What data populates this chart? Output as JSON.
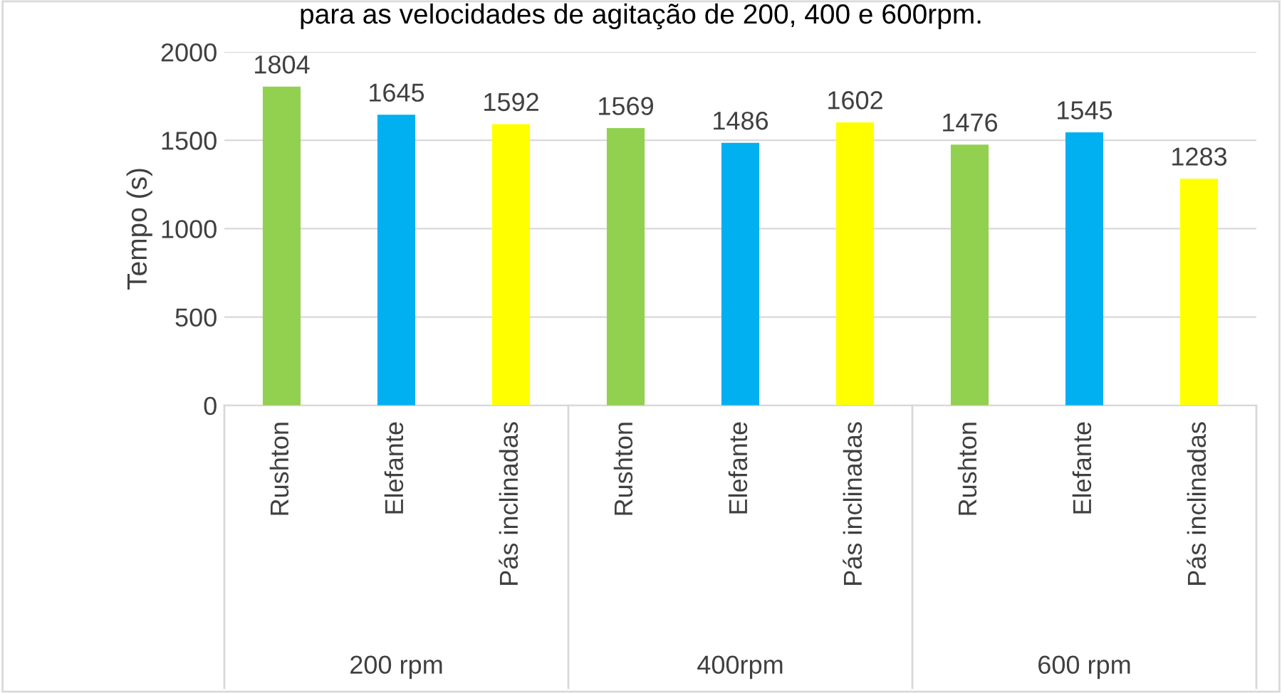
{
  "chart_data": {
    "type": "bar",
    "title": "para as velocidades de agitação de 200, 400 e 600rpm.",
    "ylabel": "Tempo (s)",
    "categories": [
      "Rushton",
      "Elefante",
      "Pás inclinadas",
      "Rushton",
      "Elefante",
      "Pás inclinadas",
      "Rushton",
      "Elefante",
      "Pás inclinadas"
    ],
    "values": [
      1804,
      1645,
      1592,
      1569,
      1486,
      1602,
      1476,
      1545,
      1283
    ],
    "colors": [
      "#92d050",
      "#00b0f0",
      "#ffff00",
      "#92d050",
      "#00b0f0",
      "#ffff00",
      "#92d050",
      "#00b0f0",
      "#ffff00"
    ],
    "annotations": [
      "200 rpm",
      "400rpm",
      "600 rpm"
    ],
    "ylim": [
      0,
      2000
    ],
    "yticks": [
      0,
      500,
      1000,
      1500,
      2000
    ],
    "grid": "y",
    "data_labels": true,
    "legend": false
  }
}
